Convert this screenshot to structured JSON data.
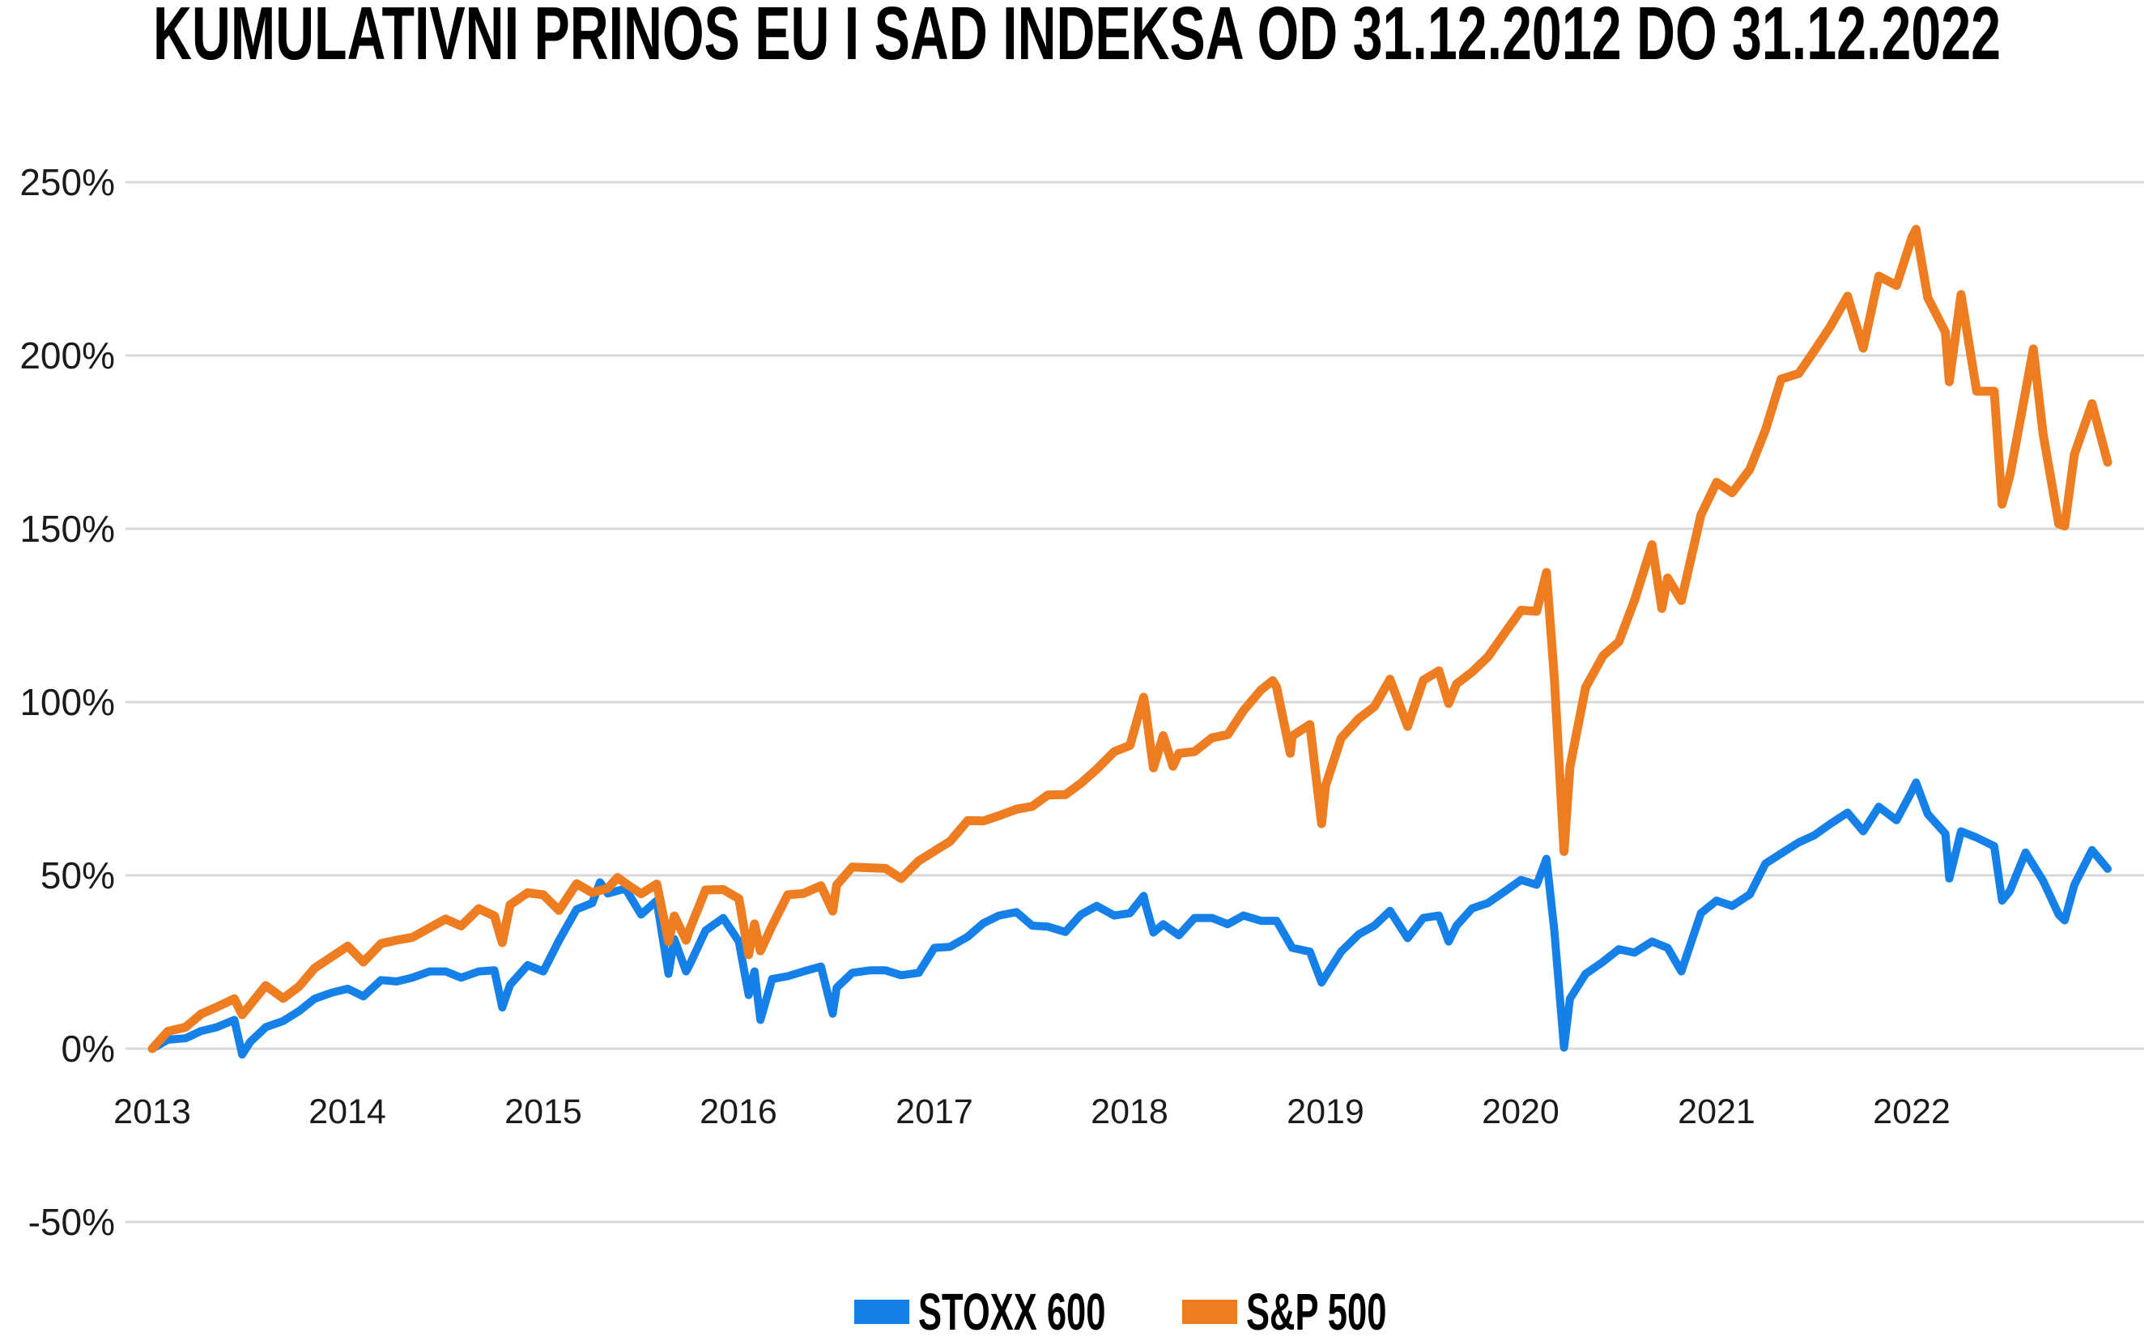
{
  "title": "KUMULATIVNI PRINOS EU I SAD INDEKSA OD 31.12.2012 DO 31.12.2022",
  "colors": {
    "stoxx_blue": "#1480E8",
    "sp_orange": "#EE7C20",
    "gridline": "#D9D9D9",
    "axis_text": "#1b1b1b",
    "title_text": "#000000"
  },
  "legend": [
    {
      "label": "STOXX 600",
      "color": "#1480E8"
    },
    {
      "label": "S&P 500",
      "color": "#EE7C20"
    }
  ],
  "chart_data": {
    "type": "line",
    "title": "KUMULATIVNI PRINOS EU I SAD INDEKSA OD 31.12.2012 DO 31.12.2022",
    "xlabel": "",
    "ylabel": "",
    "x_axis": {
      "tick_labels": [
        "2013",
        "2014",
        "2015",
        "2016",
        "2017",
        "2018",
        "2019",
        "2020",
        "2021",
        "2022"
      ],
      "range": [
        2013,
        2023
      ]
    },
    "y_axis": {
      "tick_labels": [
        "250%",
        "200%",
        "150%",
        "100%",
        "50%",
        "0%",
        "-50%"
      ],
      "range_pct": [
        -50,
        250
      ],
      "grid": true
    },
    "legend_position": "bottom-center",
    "series": [
      {
        "name": "STOXX 600",
        "color": "#1480E8",
        "points": [
          [
            2013.0,
            0
          ],
          [
            2013.08,
            2.6
          ],
          [
            2013.17,
            3.0
          ],
          [
            2013.25,
            5.1
          ],
          [
            2013.33,
            6.2
          ],
          [
            2013.42,
            8.3
          ],
          [
            2013.46,
            -1.7
          ],
          [
            2013.5,
            1.9
          ],
          [
            2013.58,
            6.2
          ],
          [
            2013.67,
            8.0
          ],
          [
            2013.75,
            10.8
          ],
          [
            2013.83,
            14.4
          ],
          [
            2013.92,
            16.2
          ],
          [
            2014.0,
            17.3
          ],
          [
            2014.08,
            15.1
          ],
          [
            2014.17,
            19.8
          ],
          [
            2014.25,
            19.4
          ],
          [
            2014.33,
            20.5
          ],
          [
            2014.42,
            22.3
          ],
          [
            2014.5,
            22.3
          ],
          [
            2014.58,
            20.5
          ],
          [
            2014.67,
            22.3
          ],
          [
            2014.75,
            22.6
          ],
          [
            2014.79,
            11.9
          ],
          [
            2014.83,
            18.4
          ],
          [
            2014.92,
            24.1
          ],
          [
            2015.0,
            22.3
          ],
          [
            2015.08,
            31.2
          ],
          [
            2015.17,
            40.2
          ],
          [
            2015.25,
            42.0
          ],
          [
            2015.29,
            48.0
          ],
          [
            2015.33,
            44.8
          ],
          [
            2015.42,
            46.2
          ],
          [
            2015.5,
            38.7
          ],
          [
            2015.58,
            42.7
          ],
          [
            2015.64,
            21.6
          ],
          [
            2015.67,
            31.6
          ],
          [
            2015.73,
            22.3
          ],
          [
            2015.75,
            24.4
          ],
          [
            2015.83,
            34.1
          ],
          [
            2015.92,
            37.7
          ],
          [
            2016.0,
            30.9
          ],
          [
            2016.05,
            15.5
          ],
          [
            2016.08,
            22.3
          ],
          [
            2016.11,
            8.3
          ],
          [
            2016.17,
            20.1
          ],
          [
            2016.25,
            20.9
          ],
          [
            2016.33,
            22.3
          ],
          [
            2016.42,
            23.7
          ],
          [
            2016.48,
            10.1
          ],
          [
            2016.5,
            17.6
          ],
          [
            2016.58,
            21.9
          ],
          [
            2016.67,
            22.6
          ],
          [
            2016.75,
            22.6
          ],
          [
            2016.83,
            21.2
          ],
          [
            2016.92,
            21.9
          ],
          [
            2017.0,
            29.1
          ],
          [
            2017.08,
            29.4
          ],
          [
            2017.17,
            32.3
          ],
          [
            2017.25,
            36.2
          ],
          [
            2017.33,
            38.4
          ],
          [
            2017.42,
            39.4
          ],
          [
            2017.5,
            35.5
          ],
          [
            2017.58,
            35.2
          ],
          [
            2017.67,
            33.7
          ],
          [
            2017.75,
            38.7
          ],
          [
            2017.83,
            41.2
          ],
          [
            2017.92,
            38.4
          ],
          [
            2018.0,
            39.1
          ],
          [
            2018.07,
            44.1
          ],
          [
            2018.08,
            41.6
          ],
          [
            2018.12,
            33.5
          ],
          [
            2018.17,
            35.9
          ],
          [
            2018.25,
            32.7
          ],
          [
            2018.33,
            37.7
          ],
          [
            2018.42,
            37.7
          ],
          [
            2018.5,
            35.9
          ],
          [
            2018.58,
            38.4
          ],
          [
            2018.67,
            36.9
          ],
          [
            2018.75,
            36.9
          ],
          [
            2018.83,
            29.1
          ],
          [
            2018.92,
            28.0
          ],
          [
            2018.98,
            19.1
          ],
          [
            2019.0,
            20.9
          ],
          [
            2019.08,
            28.0
          ],
          [
            2019.17,
            33.0
          ],
          [
            2019.25,
            35.5
          ],
          [
            2019.33,
            39.8
          ],
          [
            2019.42,
            31.9
          ],
          [
            2019.5,
            37.7
          ],
          [
            2019.58,
            38.4
          ],
          [
            2019.63,
            30.9
          ],
          [
            2019.67,
            35.5
          ],
          [
            2019.75,
            40.5
          ],
          [
            2019.83,
            42.0
          ],
          [
            2019.92,
            45.5
          ],
          [
            2020.0,
            48.7
          ],
          [
            2020.08,
            47.3
          ],
          [
            2020.13,
            54.8
          ],
          [
            2020.17,
            34.1
          ],
          [
            2020.22,
            0.3
          ],
          [
            2020.25,
            14.4
          ],
          [
            2020.33,
            21.6
          ],
          [
            2020.42,
            25.1
          ],
          [
            2020.5,
            28.7
          ],
          [
            2020.58,
            27.7
          ],
          [
            2020.67,
            30.9
          ],
          [
            2020.75,
            29.1
          ],
          [
            2020.82,
            22.3
          ],
          [
            2020.92,
            39.1
          ],
          [
            2021.0,
            42.7
          ],
          [
            2021.08,
            41.2
          ],
          [
            2021.17,
            44.5
          ],
          [
            2021.25,
            53.4
          ],
          [
            2021.33,
            56.3
          ],
          [
            2021.42,
            59.5
          ],
          [
            2021.5,
            61.6
          ],
          [
            2021.58,
            64.8
          ],
          [
            2021.67,
            68.1
          ],
          [
            2021.75,
            62.7
          ],
          [
            2021.83,
            69.8
          ],
          [
            2021.92,
            65.9
          ],
          [
            2022.0,
            74.4
          ],
          [
            2022.02,
            76.8
          ],
          [
            2022.08,
            67.7
          ],
          [
            2022.17,
            62.0
          ],
          [
            2022.19,
            49.1
          ],
          [
            2022.25,
            62.7
          ],
          [
            2022.33,
            60.9
          ],
          [
            2022.42,
            58.4
          ],
          [
            2022.46,
            42.7
          ],
          [
            2022.5,
            45.5
          ],
          [
            2022.58,
            56.6
          ],
          [
            2022.67,
            48.4
          ],
          [
            2022.75,
            38.7
          ],
          [
            2022.78,
            37.0
          ],
          [
            2022.83,
            47.3
          ],
          [
            2022.92,
            57.3
          ],
          [
            2023.0,
            51.9
          ]
        ]
      },
      {
        "name": "S&P 500",
        "color": "#EE7C20",
        "points": [
          [
            2013.0,
            0
          ],
          [
            2013.08,
            5.0
          ],
          [
            2013.17,
            6.2
          ],
          [
            2013.25,
            10.0
          ],
          [
            2013.33,
            12.0
          ],
          [
            2013.42,
            14.4
          ],
          [
            2013.46,
            9.8
          ],
          [
            2013.5,
            12.6
          ],
          [
            2013.58,
            18.2
          ],
          [
            2013.67,
            14.5
          ],
          [
            2013.75,
            17.9
          ],
          [
            2013.83,
            23.2
          ],
          [
            2013.92,
            26.6
          ],
          [
            2014.0,
            29.6
          ],
          [
            2014.08,
            25.0
          ],
          [
            2014.17,
            30.3
          ],
          [
            2014.25,
            31.3
          ],
          [
            2014.33,
            32.1
          ],
          [
            2014.42,
            34.9
          ],
          [
            2014.5,
            37.4
          ],
          [
            2014.58,
            35.4
          ],
          [
            2014.67,
            40.4
          ],
          [
            2014.75,
            38.3
          ],
          [
            2014.79,
            30.6
          ],
          [
            2014.83,
            41.5
          ],
          [
            2014.92,
            45.0
          ],
          [
            2015.0,
            44.4
          ],
          [
            2015.08,
            39.9
          ],
          [
            2015.17,
            47.6
          ],
          [
            2015.25,
            45.0
          ],
          [
            2015.33,
            46.3
          ],
          [
            2015.38,
            49.4
          ],
          [
            2015.42,
            47.7
          ],
          [
            2015.5,
            44.7
          ],
          [
            2015.58,
            47.5
          ],
          [
            2015.64,
            30.9
          ],
          [
            2015.67,
            38.3
          ],
          [
            2015.73,
            31.3
          ],
          [
            2015.75,
            34.6
          ],
          [
            2015.83,
            45.8
          ],
          [
            2015.92,
            45.9
          ],
          [
            2016.0,
            43.3
          ],
          [
            2016.05,
            27.1
          ],
          [
            2016.08,
            36.0
          ],
          [
            2016.11,
            28.2
          ],
          [
            2016.17,
            35.5
          ],
          [
            2016.25,
            44.4
          ],
          [
            2016.33,
            44.8
          ],
          [
            2016.42,
            47.0
          ],
          [
            2016.48,
            39.7
          ],
          [
            2016.5,
            47.2
          ],
          [
            2016.58,
            52.4
          ],
          [
            2016.67,
            52.2
          ],
          [
            2016.75,
            52.0
          ],
          [
            2016.83,
            49.1
          ],
          [
            2016.92,
            54.2
          ],
          [
            2017.0,
            57.0
          ],
          [
            2017.08,
            59.8
          ],
          [
            2017.17,
            65.8
          ],
          [
            2017.25,
            65.7
          ],
          [
            2017.33,
            67.2
          ],
          [
            2017.42,
            69.1
          ],
          [
            2017.5,
            69.9
          ],
          [
            2017.58,
            73.2
          ],
          [
            2017.67,
            73.3
          ],
          [
            2017.75,
            76.6
          ],
          [
            2017.83,
            80.6
          ],
          [
            2017.92,
            85.7
          ],
          [
            2018.0,
            87.5
          ],
          [
            2018.07,
            101.4
          ],
          [
            2018.08,
            98.0
          ],
          [
            2018.12,
            81.0
          ],
          [
            2018.17,
            90.3
          ],
          [
            2018.22,
            81.5
          ],
          [
            2018.25,
            85.2
          ],
          [
            2018.33,
            85.7
          ],
          [
            2018.42,
            89.7
          ],
          [
            2018.5,
            90.6
          ],
          [
            2018.58,
            97.5
          ],
          [
            2018.67,
            103.5
          ],
          [
            2018.73,
            106.2
          ],
          [
            2018.75,
            104.3
          ],
          [
            2018.82,
            85.2
          ],
          [
            2018.83,
            90.2
          ],
          [
            2018.92,
            93.5
          ],
          [
            2018.98,
            64.9
          ],
          [
            2019.0,
            75.8
          ],
          [
            2019.08,
            89.6
          ],
          [
            2019.17,
            95.2
          ],
          [
            2019.25,
            98.7
          ],
          [
            2019.33,
            106.6
          ],
          [
            2019.42,
            93.0
          ],
          [
            2019.5,
            106.3
          ],
          [
            2019.58,
            109.0
          ],
          [
            2019.63,
            99.6
          ],
          [
            2019.67,
            105.2
          ],
          [
            2019.75,
            108.7
          ],
          [
            2019.83,
            113.0
          ],
          [
            2019.92,
            120.2
          ],
          [
            2020.0,
            126.5
          ],
          [
            2020.08,
            126.2
          ],
          [
            2020.13,
            137.4
          ],
          [
            2020.17,
            107.1
          ],
          [
            2020.22,
            56.9
          ],
          [
            2020.25,
            81.3
          ],
          [
            2020.33,
            104.2
          ],
          [
            2020.42,
            113.4
          ],
          [
            2020.5,
            117.4
          ],
          [
            2020.58,
            129.3
          ],
          [
            2020.67,
            145.4
          ],
          [
            2020.72,
            127.0
          ],
          [
            2020.75,
            135.8
          ],
          [
            2020.82,
            129.3
          ],
          [
            2020.92,
            154.0
          ],
          [
            2021.0,
            163.4
          ],
          [
            2021.08,
            160.4
          ],
          [
            2021.17,
            167.2
          ],
          [
            2021.25,
            178.5
          ],
          [
            2021.33,
            193.2
          ],
          [
            2021.42,
            194.8
          ],
          [
            2021.5,
            201.4
          ],
          [
            2021.58,
            208.2
          ],
          [
            2021.67,
            217.1
          ],
          [
            2021.75,
            202.1
          ],
          [
            2021.83,
            222.9
          ],
          [
            2021.92,
            220.2
          ],
          [
            2022.0,
            234.2
          ],
          [
            2022.02,
            236.4
          ],
          [
            2022.08,
            216.7
          ],
          [
            2022.17,
            206.7
          ],
          [
            2022.19,
            192.4
          ],
          [
            2022.25,
            217.6
          ],
          [
            2022.33,
            189.7
          ],
          [
            2022.42,
            189.7
          ],
          [
            2022.46,
            157.1
          ],
          [
            2022.5,
            165.4
          ],
          [
            2022.58,
            189.6
          ],
          [
            2022.62,
            201.9
          ],
          [
            2022.67,
            177.3
          ],
          [
            2022.75,
            151.4
          ],
          [
            2022.78,
            150.8
          ],
          [
            2022.83,
            171.5
          ],
          [
            2022.92,
            186.1
          ],
          [
            2023.0,
            169.2
          ]
        ]
      }
    ]
  }
}
